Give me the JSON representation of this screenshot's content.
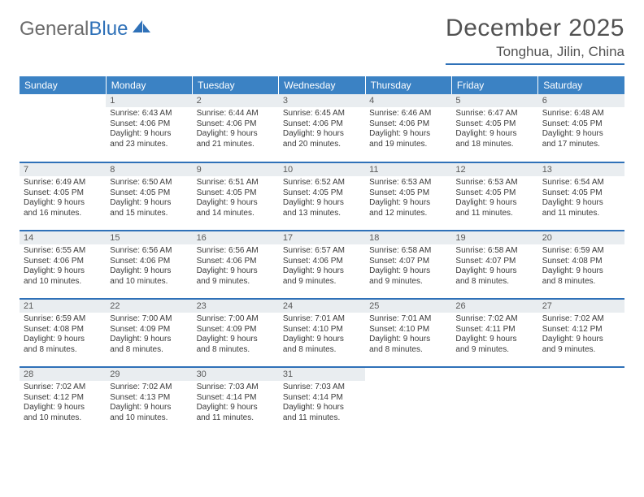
{
  "logo": {
    "text_a": "General",
    "text_b": "Blue",
    "icon_name": "sail-icon",
    "icon_color": "#2f71b8",
    "gray": "#6b6b6b"
  },
  "header": {
    "month": "December 2025",
    "location": "Tonghua, Jilin, China"
  },
  "theme": {
    "header_bg": "#3b82c4",
    "header_text": "#ffffff",
    "daynum_bg": "#e9edf0",
    "rule_color": "#2f71b8",
    "body_text": "#3a3a3a"
  },
  "weekdays": [
    "Sunday",
    "Monday",
    "Tuesday",
    "Wednesday",
    "Thursday",
    "Friday",
    "Saturday"
  ],
  "weeks": [
    [
      {
        "n": "",
        "lines": [
          "",
          "",
          "",
          ""
        ]
      },
      {
        "n": "1",
        "lines": [
          "Sunrise: 6:43 AM",
          "Sunset: 4:06 PM",
          "Daylight: 9 hours",
          "and 23 minutes."
        ]
      },
      {
        "n": "2",
        "lines": [
          "Sunrise: 6:44 AM",
          "Sunset: 4:06 PM",
          "Daylight: 9 hours",
          "and 21 minutes."
        ]
      },
      {
        "n": "3",
        "lines": [
          "Sunrise: 6:45 AM",
          "Sunset: 4:06 PM",
          "Daylight: 9 hours",
          "and 20 minutes."
        ]
      },
      {
        "n": "4",
        "lines": [
          "Sunrise: 6:46 AM",
          "Sunset: 4:06 PM",
          "Daylight: 9 hours",
          "and 19 minutes."
        ]
      },
      {
        "n": "5",
        "lines": [
          "Sunrise: 6:47 AM",
          "Sunset: 4:05 PM",
          "Daylight: 9 hours",
          "and 18 minutes."
        ]
      },
      {
        "n": "6",
        "lines": [
          "Sunrise: 6:48 AM",
          "Sunset: 4:05 PM",
          "Daylight: 9 hours",
          "and 17 minutes."
        ]
      }
    ],
    [
      {
        "n": "7",
        "lines": [
          "Sunrise: 6:49 AM",
          "Sunset: 4:05 PM",
          "Daylight: 9 hours",
          "and 16 minutes."
        ]
      },
      {
        "n": "8",
        "lines": [
          "Sunrise: 6:50 AM",
          "Sunset: 4:05 PM",
          "Daylight: 9 hours",
          "and 15 minutes."
        ]
      },
      {
        "n": "9",
        "lines": [
          "Sunrise: 6:51 AM",
          "Sunset: 4:05 PM",
          "Daylight: 9 hours",
          "and 14 minutes."
        ]
      },
      {
        "n": "10",
        "lines": [
          "Sunrise: 6:52 AM",
          "Sunset: 4:05 PM",
          "Daylight: 9 hours",
          "and 13 minutes."
        ]
      },
      {
        "n": "11",
        "lines": [
          "Sunrise: 6:53 AM",
          "Sunset: 4:05 PM",
          "Daylight: 9 hours",
          "and 12 minutes."
        ]
      },
      {
        "n": "12",
        "lines": [
          "Sunrise: 6:53 AM",
          "Sunset: 4:05 PM",
          "Daylight: 9 hours",
          "and 11 minutes."
        ]
      },
      {
        "n": "13",
        "lines": [
          "Sunrise: 6:54 AM",
          "Sunset: 4:05 PM",
          "Daylight: 9 hours",
          "and 11 minutes."
        ]
      }
    ],
    [
      {
        "n": "14",
        "lines": [
          "Sunrise: 6:55 AM",
          "Sunset: 4:06 PM",
          "Daylight: 9 hours",
          "and 10 minutes."
        ]
      },
      {
        "n": "15",
        "lines": [
          "Sunrise: 6:56 AM",
          "Sunset: 4:06 PM",
          "Daylight: 9 hours",
          "and 10 minutes."
        ]
      },
      {
        "n": "16",
        "lines": [
          "Sunrise: 6:56 AM",
          "Sunset: 4:06 PM",
          "Daylight: 9 hours",
          "and 9 minutes."
        ]
      },
      {
        "n": "17",
        "lines": [
          "Sunrise: 6:57 AM",
          "Sunset: 4:06 PM",
          "Daylight: 9 hours",
          "and 9 minutes."
        ]
      },
      {
        "n": "18",
        "lines": [
          "Sunrise: 6:58 AM",
          "Sunset: 4:07 PM",
          "Daylight: 9 hours",
          "and 9 minutes."
        ]
      },
      {
        "n": "19",
        "lines": [
          "Sunrise: 6:58 AM",
          "Sunset: 4:07 PM",
          "Daylight: 9 hours",
          "and 8 minutes."
        ]
      },
      {
        "n": "20",
        "lines": [
          "Sunrise: 6:59 AM",
          "Sunset: 4:08 PM",
          "Daylight: 9 hours",
          "and 8 minutes."
        ]
      }
    ],
    [
      {
        "n": "21",
        "lines": [
          "Sunrise: 6:59 AM",
          "Sunset: 4:08 PM",
          "Daylight: 9 hours",
          "and 8 minutes."
        ]
      },
      {
        "n": "22",
        "lines": [
          "Sunrise: 7:00 AM",
          "Sunset: 4:09 PM",
          "Daylight: 9 hours",
          "and 8 minutes."
        ]
      },
      {
        "n": "23",
        "lines": [
          "Sunrise: 7:00 AM",
          "Sunset: 4:09 PM",
          "Daylight: 9 hours",
          "and 8 minutes."
        ]
      },
      {
        "n": "24",
        "lines": [
          "Sunrise: 7:01 AM",
          "Sunset: 4:10 PM",
          "Daylight: 9 hours",
          "and 8 minutes."
        ]
      },
      {
        "n": "25",
        "lines": [
          "Sunrise: 7:01 AM",
          "Sunset: 4:10 PM",
          "Daylight: 9 hours",
          "and 8 minutes."
        ]
      },
      {
        "n": "26",
        "lines": [
          "Sunrise: 7:02 AM",
          "Sunset: 4:11 PM",
          "Daylight: 9 hours",
          "and 9 minutes."
        ]
      },
      {
        "n": "27",
        "lines": [
          "Sunrise: 7:02 AM",
          "Sunset: 4:12 PM",
          "Daylight: 9 hours",
          "and 9 minutes."
        ]
      }
    ],
    [
      {
        "n": "28",
        "lines": [
          "Sunrise: 7:02 AM",
          "Sunset: 4:12 PM",
          "Daylight: 9 hours",
          "and 10 minutes."
        ]
      },
      {
        "n": "29",
        "lines": [
          "Sunrise: 7:02 AM",
          "Sunset: 4:13 PM",
          "Daylight: 9 hours",
          "and 10 minutes."
        ]
      },
      {
        "n": "30",
        "lines": [
          "Sunrise: 7:03 AM",
          "Sunset: 4:14 PM",
          "Daylight: 9 hours",
          "and 11 minutes."
        ]
      },
      {
        "n": "31",
        "lines": [
          "Sunrise: 7:03 AM",
          "Sunset: 4:14 PM",
          "Daylight: 9 hours",
          "and 11 minutes."
        ]
      },
      {
        "n": "",
        "lines": [
          "",
          "",
          "",
          ""
        ]
      },
      {
        "n": "",
        "lines": [
          "",
          "",
          "",
          ""
        ]
      },
      {
        "n": "",
        "lines": [
          "",
          "",
          "",
          ""
        ]
      }
    ]
  ]
}
